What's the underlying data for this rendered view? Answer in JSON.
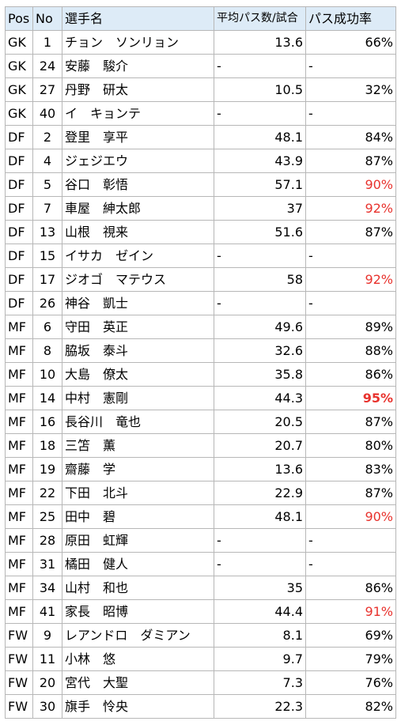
{
  "headers": {
    "pos": "Pos",
    "no": "No",
    "name": "選手名",
    "avg_pass": "平均パス数/試合",
    "pass_rate": "パス成功率"
  },
  "colors": {
    "header_bg": "#ddebf7",
    "highlight": "#e8322d",
    "border": "#b7b7b7"
  },
  "rows": [
    {
      "pos": "GK",
      "no": "1",
      "name": "チョン　ソンリョン",
      "avg": "13.6",
      "rate": "66%",
      "style": ""
    },
    {
      "pos": "GK",
      "no": "24",
      "name": "安藤　駿介",
      "avg": "-",
      "rate": "-",
      "style": ""
    },
    {
      "pos": "GK",
      "no": "27",
      "name": "丹野　研太",
      "avg": "10.5",
      "rate": "32%",
      "style": ""
    },
    {
      "pos": "GK",
      "no": "40",
      "name": "イ　キョンテ",
      "avg": "-",
      "rate": "-",
      "style": ""
    },
    {
      "pos": "DF",
      "no": "2",
      "name": "登里　享平",
      "avg": "48.1",
      "rate": "84%",
      "style": ""
    },
    {
      "pos": "DF",
      "no": "4",
      "name": "ジェジエウ",
      "avg": "43.9",
      "rate": "87%",
      "style": ""
    },
    {
      "pos": "DF",
      "no": "5",
      "name": "谷口　彰悟",
      "avg": "57.1",
      "rate": "90%",
      "style": "hi"
    },
    {
      "pos": "DF",
      "no": "7",
      "name": "車屋　紳太郎",
      "avg": "37",
      "rate": "92%",
      "style": "hi"
    },
    {
      "pos": "DF",
      "no": "13",
      "name": "山根　視来",
      "avg": "51.6",
      "rate": "87%",
      "style": ""
    },
    {
      "pos": "DF",
      "no": "15",
      "name": "イサカ　ゼイン",
      "avg": "-",
      "rate": "-",
      "style": ""
    },
    {
      "pos": "DF",
      "no": "17",
      "name": "ジオゴ　マテウス",
      "avg": "58",
      "rate": "92%",
      "style": "hi"
    },
    {
      "pos": "DF",
      "no": "26",
      "name": "神谷　凱士",
      "avg": "-",
      "rate": "-",
      "style": ""
    },
    {
      "pos": "MF",
      "no": "6",
      "name": "守田　英正",
      "avg": "49.6",
      "rate": "89%",
      "style": ""
    },
    {
      "pos": "MF",
      "no": "8",
      "name": "脇坂　泰斗",
      "avg": "32.6",
      "rate": "88%",
      "style": ""
    },
    {
      "pos": "MF",
      "no": "10",
      "name": "大島　僚太",
      "avg": "35.8",
      "rate": "86%",
      "style": ""
    },
    {
      "pos": "MF",
      "no": "14",
      "name": "中村　憲剛",
      "avg": "44.3",
      "rate": "95%",
      "style": "best"
    },
    {
      "pos": "MF",
      "no": "16",
      "name": "長谷川　竜也",
      "avg": "20.5",
      "rate": "87%",
      "style": ""
    },
    {
      "pos": "MF",
      "no": "18",
      "name": "三笘　薫",
      "avg": "20.7",
      "rate": "80%",
      "style": ""
    },
    {
      "pos": "MF",
      "no": "19",
      "name": "齋藤　学",
      "avg": "13.6",
      "rate": "83%",
      "style": ""
    },
    {
      "pos": "MF",
      "no": "22",
      "name": "下田　北斗",
      "avg": "22.9",
      "rate": "87%",
      "style": ""
    },
    {
      "pos": "MF",
      "no": "25",
      "name": "田中　碧",
      "avg": "48.1",
      "rate": "90%",
      "style": "hi"
    },
    {
      "pos": "MF",
      "no": "28",
      "name": "原田　虹輝",
      "avg": "-",
      "rate": "-",
      "style": ""
    },
    {
      "pos": "MF",
      "no": "31",
      "name": "橘田　健人",
      "avg": "-",
      "rate": "-",
      "style": ""
    },
    {
      "pos": "MF",
      "no": "34",
      "name": "山村　和也",
      "avg": "35",
      "rate": "86%",
      "style": ""
    },
    {
      "pos": "MF",
      "no": "41",
      "name": "家長　昭博",
      "avg": "44.4",
      "rate": "91%",
      "style": "hi"
    },
    {
      "pos": "FW",
      "no": "9",
      "name": "レアンドロ　ダミアン",
      "avg": "8.1",
      "rate": "69%",
      "style": ""
    },
    {
      "pos": "FW",
      "no": "11",
      "name": "小林　悠",
      "avg": "9.7",
      "rate": "79%",
      "style": ""
    },
    {
      "pos": "FW",
      "no": "20",
      "name": "宮代　大聖",
      "avg": "7.3",
      "rate": "76%",
      "style": ""
    },
    {
      "pos": "FW",
      "no": "30",
      "name": "旗手　怜央",
      "avg": "22.3",
      "rate": "82%",
      "style": ""
    }
  ]
}
